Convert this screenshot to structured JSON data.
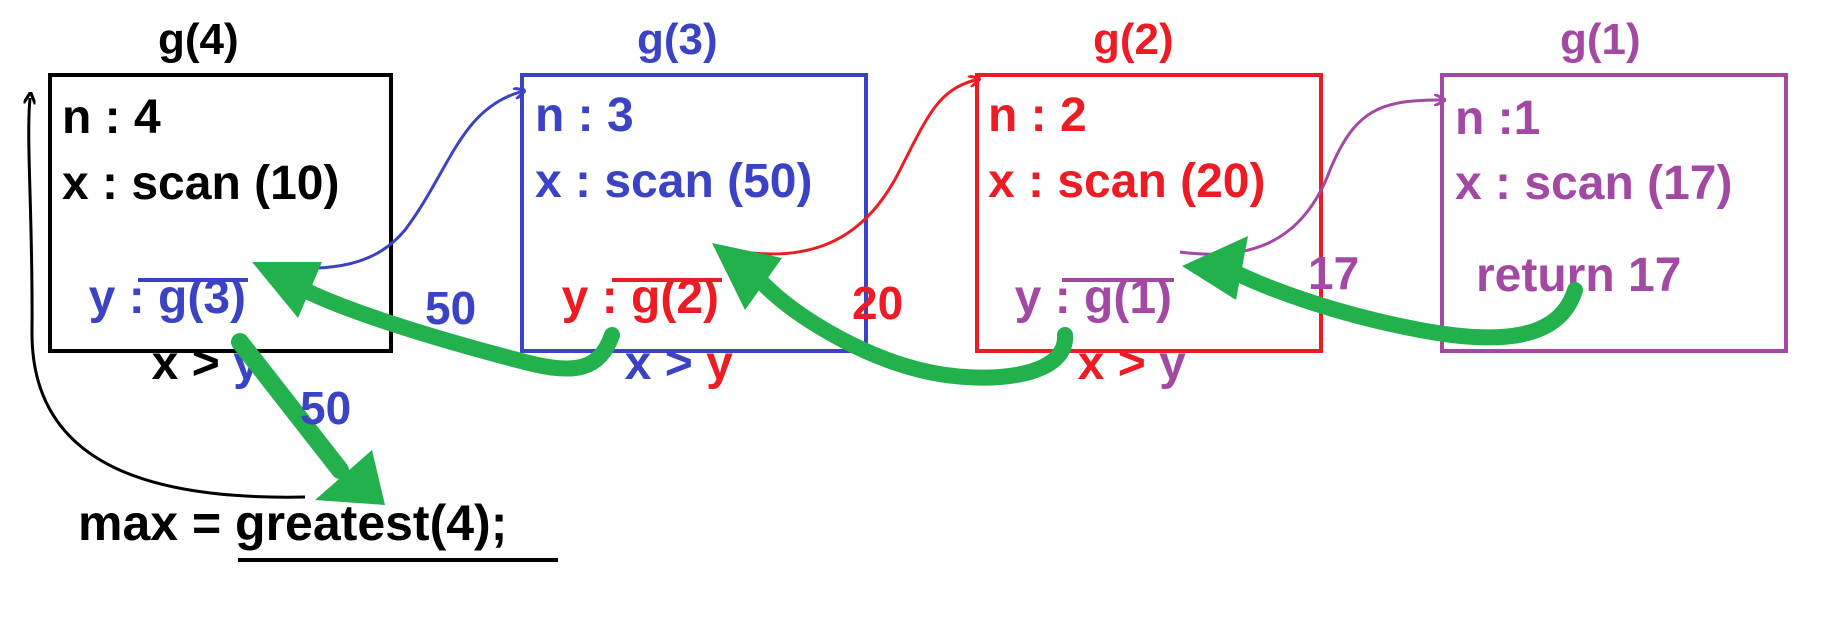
{
  "colors": {
    "g4": "#000000",
    "g3": "#3b43c4",
    "g2": "#ed1c24",
    "g1": "#a349a4",
    "arrow_return": "#22b14c"
  },
  "frames": {
    "g4": {
      "title": "g(4)",
      "n": "n : 4",
      "x": "x : scan (10)",
      "y_label": "y : ",
      "y_call": "g(3)",
      "cmp_x": "x > ",
      "cmp_y": "y"
    },
    "g3": {
      "title": "g(3)",
      "n": "n : 3",
      "x": "x : scan (50)",
      "y_label": "y : ",
      "y_call": "g(2)",
      "cmp_x": "x > ",
      "cmp_y": "y"
    },
    "g2": {
      "title": "g(2)",
      "n": "n : 2",
      "x": "x : scan (20)",
      "y_label": "y : ",
      "y_call": "g(1)",
      "cmp_x": "x > ",
      "cmp_y": "y"
    },
    "g1": {
      "title": "g(1)",
      "n": "n :1",
      "x": "x : scan (17)",
      "ret": "return 17"
    }
  },
  "return_values": {
    "g3_to_g4": "50",
    "g2_to_g3": "20",
    "g1_to_g2": "17",
    "g4_to_main": "50"
  },
  "main_call": "max = greatest(4);"
}
